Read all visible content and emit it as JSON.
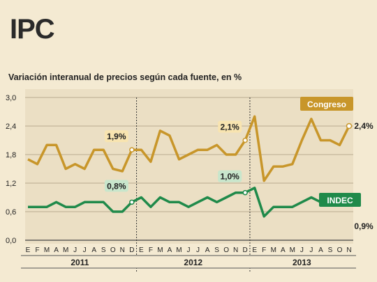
{
  "chart_data": {
    "type": "line",
    "title": "IPC",
    "subtitle": "Variación interanual de precios según cada fuente, en %",
    "ylim": [
      0,
      3.0
    ],
    "yticks": [
      "0,0",
      "0,6",
      "1,2",
      "1,8",
      "2,4",
      "3,0"
    ],
    "months": [
      "E",
      "F",
      "M",
      "A",
      "M",
      "J",
      "J",
      "A",
      "S",
      "O",
      "N",
      "D",
      "E",
      "F",
      "M",
      "A",
      "M",
      "J",
      "J",
      "A",
      "S",
      "O",
      "N",
      "D",
      "E",
      "F",
      "M",
      "A",
      "M",
      "J",
      "J",
      "A",
      "S",
      "O",
      "N"
    ],
    "years": [
      {
        "label": "2011",
        "start": 0,
        "end": 11
      },
      {
        "label": "2012",
        "start": 12,
        "end": 23
      },
      {
        "label": "2013",
        "start": 24,
        "end": 34
      }
    ],
    "grid": true,
    "series": [
      {
        "name": "Congreso",
        "color": "#c8962a",
        "values": [
          1.7,
          1.6,
          2.0,
          2.0,
          1.5,
          1.6,
          1.5,
          1.9,
          1.9,
          1.5,
          1.45,
          1.9,
          1.9,
          1.65,
          2.3,
          2.2,
          1.7,
          1.8,
          1.9,
          1.9,
          2.0,
          1.8,
          1.8,
          2.1,
          2.6,
          1.25,
          1.55,
          1.55,
          1.6,
          2.1,
          2.55,
          2.1,
          2.1,
          2.0,
          2.4
        ],
        "end_label": "2,4%"
      },
      {
        "name": "INDEC",
        "color": "#1f8a4a",
        "values": [
          0.7,
          0.7,
          0.7,
          0.8,
          0.7,
          0.7,
          0.8,
          0.8,
          0.8,
          0.6,
          0.6,
          0.8,
          0.9,
          0.7,
          0.9,
          0.8,
          0.8,
          0.7,
          0.8,
          0.9,
          0.8,
          0.9,
          1.0,
          1.0,
          1.1,
          0.5,
          0.7,
          0.7,
          0.7,
          0.8,
          0.9,
          0.8,
          0.8,
          0.9,
          0.9
        ],
        "end_label": "0,9%"
      }
    ],
    "annotations": [
      {
        "series": 0,
        "index": 11,
        "text": "1,9%"
      },
      {
        "series": 1,
        "index": 11,
        "text": "0,8%"
      },
      {
        "series": 0,
        "index": 23,
        "text": "2,1%"
      },
      {
        "series": 1,
        "index": 23,
        "text": "1,0%"
      }
    ]
  }
}
